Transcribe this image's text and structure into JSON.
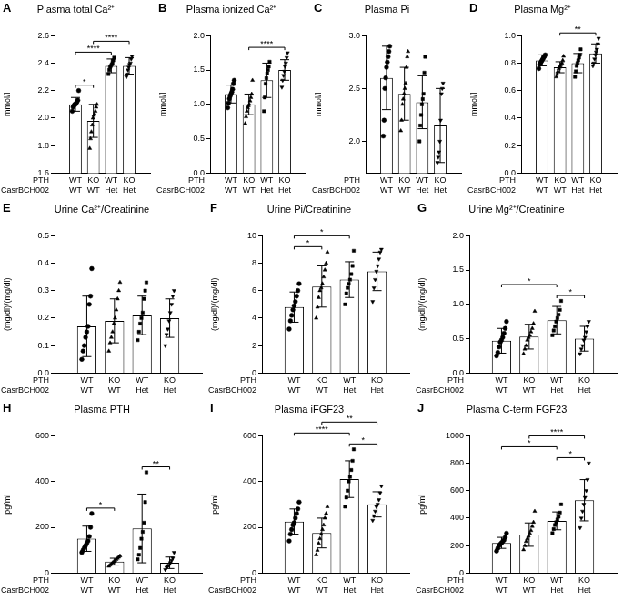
{
  "chart_data": [
    {
      "type": "bar",
      "panel_label": "A",
      "title": "Plasma total Ca²⁺",
      "y_label": "mmol/l",
      "categories": [
        [
          "WT",
          "WT"
        ],
        [
          "KO",
          "WT"
        ],
        [
          "WT",
          "Het"
        ],
        [
          "KO",
          "Het"
        ]
      ],
      "category_rows": [
        "PTH",
        "CasrBCH002"
      ],
      "values": [
        2.1,
        1.98,
        2.38,
        2.38
      ],
      "error": [
        0.05,
        0.12,
        0.05,
        0.06
      ],
      "points": [
        [
          2.05,
          2.08,
          2.09,
          2.1,
          2.1,
          2.11,
          2.12,
          2.13,
          2.2
        ],
        [
          1.78,
          1.85,
          1.9,
          1.95,
          2.0,
          2.02,
          2.03,
          2.05,
          2.08,
          2.1
        ],
        [
          2.32,
          2.35,
          2.37,
          2.38,
          2.39,
          2.4,
          2.42,
          2.44
        ],
        [
          2.3,
          2.32,
          2.35,
          2.37,
          2.39,
          2.4,
          2.43,
          2.45
        ]
      ],
      "color": "#ffffff",
      "ylim": [
        1.6,
        2.6
      ],
      "yticks": [
        1.6,
        1.8,
        {
          "value": 2,
          "label": "2.0"
        },
        2.2,
        2.4,
        2.6
      ],
      "grid": false,
      "significance": [
        {
          "from": 0,
          "to": 1,
          "label": "*"
        },
        {
          "from": 1,
          "to": 3,
          "label": "****"
        },
        {
          "from": 0,
          "to": 2,
          "label": "****"
        }
      ]
    },
    {
      "type": "bar",
      "panel_label": "B",
      "title": "Plasma ionized Ca²⁺",
      "y_label": "mmol/l",
      "categories": [
        [
          "WT",
          "WT"
        ],
        [
          "KO",
          "WT"
        ],
        [
          "WT",
          "Het"
        ],
        [
          "KO",
          "Het"
        ]
      ],
      "category_rows": [
        "PTH",
        "CasrBCH002"
      ],
      "values": [
        1.15,
        1.0,
        1.35,
        1.5
      ],
      "error": [
        0.13,
        0.15,
        0.25,
        0.15
      ],
      "points": [
        [
          0.95,
          1.02,
          1.08,
          1.12,
          1.15,
          1.18,
          1.22,
          1.3,
          1.35
        ],
        [
          0.72,
          0.82,
          0.9,
          0.95,
          0.98,
          1.0,
          1.05,
          1.1,
          1.15,
          1.35
        ],
        [
          0.9,
          1.1,
          1.3,
          1.38,
          1.45,
          1.5,
          1.55,
          1.62
        ],
        [
          1.25,
          1.35,
          1.42,
          1.48,
          1.55,
          1.6,
          1.68,
          1.75
        ]
      ],
      "color": "#ffffff",
      "ylim": [
        0,
        2
      ],
      "yticks": [
        {
          "value": 0,
          "label": "0.0"
        },
        0.5,
        {
          "value": 1,
          "label": "1.0"
        },
        1.5,
        {
          "value": 2,
          "label": "2.0"
        }
      ],
      "grid": false,
      "significance": [
        {
          "from": 1,
          "to": 3,
          "label": "****"
        }
      ]
    },
    {
      "type": "bar",
      "panel_label": "C",
      "title": "Plasma Pi",
      "y_label": "mmol/l",
      "categories": [
        [
          "WT",
          "WT"
        ],
        [
          "KO",
          "WT"
        ],
        [
          "WT",
          "Het"
        ],
        [
          "KO",
          "Het"
        ]
      ],
      "category_rows": [
        "PTH",
        "CasrBCH002"
      ],
      "values": [
        2.6,
        2.45,
        2.37,
        2.15
      ],
      "error": [
        0.3,
        0.25,
        0.25,
        0.35
      ],
      "points": [
        [
          2.05,
          2.2,
          2.5,
          2.6,
          2.7,
          2.75,
          2.8,
          2.85,
          2.9
        ],
        [
          2.1,
          2.2,
          2.35,
          2.4,
          2.45,
          2.5,
          2.55,
          2.7,
          2.8,
          2.85
        ],
        [
          2.0,
          2.15,
          2.25,
          2.35,
          2.4,
          2.45,
          2.65,
          2.8
        ],
        [
          1.8,
          1.85,
          1.9,
          2.0,
          2.2,
          2.45,
          2.5,
          2.55
        ]
      ],
      "color": "#ffffff",
      "ylim": [
        1.7,
        3
      ],
      "yticks": [
        {
          "value": 2,
          "label": "2.0"
        },
        2.5,
        {
          "value": 3,
          "label": "3.0"
        }
      ],
      "grid": false,
      "significance": []
    },
    {
      "type": "bar",
      "panel_label": "D",
      "title": "Plasma Mg²⁺",
      "y_label": "mmol/l",
      "categories": [
        [
          "WT",
          "WT"
        ],
        [
          "KO",
          "WT"
        ],
        [
          "WT",
          "Het"
        ],
        [
          "KO",
          "Het"
        ]
      ],
      "category_rows": [
        "PTH",
        "CasrBCH002"
      ],
      "values": [
        0.82,
        0.77,
        0.8,
        0.87
      ],
      "error": [
        0.04,
        0.04,
        0.07,
        0.07
      ],
      "points": [
        [
          0.76,
          0.79,
          0.8,
          0.81,
          0.82,
          0.83,
          0.84,
          0.85,
          0.86
        ],
        [
          0.7,
          0.72,
          0.74,
          0.76,
          0.77,
          0.78,
          0.79,
          0.8,
          0.82,
          0.85
        ],
        [
          0.7,
          0.74,
          0.78,
          0.8,
          0.82,
          0.84,
          0.86,
          0.9
        ],
        [
          0.78,
          0.8,
          0.83,
          0.86,
          0.88,
          0.9,
          0.94,
          0.98
        ]
      ],
      "color": "#ffffff",
      "ylim": [
        0,
        1
      ],
      "yticks": [
        {
          "value": 0,
          "label": "0.0"
        },
        0.2,
        0.4,
        0.6,
        0.8,
        {
          "value": 1,
          "label": "1.0"
        }
      ],
      "grid": false,
      "significance": [
        {
          "from": 1,
          "to": 3,
          "label": "**"
        }
      ]
    },
    {
      "type": "bar",
      "panel_label": "E",
      "title": "Urine Ca²⁺/Creatinine",
      "y_label": "(mg/dl)/(mg/dl)",
      "categories": [
        [
          "WT",
          "WT"
        ],
        [
          "KO",
          "WT"
        ],
        [
          "WT",
          "Het"
        ],
        [
          "KO",
          "Het"
        ]
      ],
      "category_rows": [
        "PTH",
        "CasrBCH002"
      ],
      "values": [
        0.17,
        0.19,
        0.21,
        0.2
      ],
      "error": [
        0.11,
        0.08,
        0.07,
        0.07
      ],
      "points": [
        [
          0.05,
          0.08,
          0.1,
          0.13,
          0.15,
          0.17,
          0.25,
          0.28,
          0.38
        ],
        [
          0.08,
          0.11,
          0.13,
          0.15,
          0.18,
          0.2,
          0.23,
          0.27,
          0.3,
          0.33
        ],
        [
          0.12,
          0.15,
          0.18,
          0.2,
          0.22,
          0.27,
          0.3,
          0.33
        ],
        [
          0.1,
          0.14,
          0.16,
          0.19,
          0.22,
          0.25,
          0.28,
          0.3
        ]
      ],
      "color": "#ffffff",
      "ylim": [
        0,
        0.5
      ],
      "yticks": [
        {
          "value": 0,
          "label": "0.0"
        },
        0.1,
        0.2,
        0.3,
        0.4,
        0.5
      ],
      "grid": false,
      "significance": []
    },
    {
      "type": "bar",
      "panel_label": "F",
      "title": "Urine Pi/Creatinine",
      "y_label": "(mg/dl)/(mg/dl)",
      "categories": [
        [
          "WT",
          "WT"
        ],
        [
          "KO",
          "WT"
        ],
        [
          "WT",
          "Het"
        ],
        [
          "KO",
          "Het"
        ]
      ],
      "category_rows": [
        "PTH",
        "CasrBCH002"
      ],
      "values": [
        4.8,
        6.3,
        6.8,
        7.4
      ],
      "error": [
        1.1,
        1.5,
        1.3,
        1.4
      ],
      "points": [
        [
          3.2,
          3.8,
          4.2,
          4.6,
          4.9,
          5.2,
          5.6,
          6.0,
          6.5
        ],
        [
          4.0,
          4.8,
          5.5,
          6.0,
          6.2,
          6.5,
          7.0,
          7.5,
          8.0,
          8.8
        ],
        [
          5.0,
          5.8,
          6.2,
          6.5,
          6.8,
          7.2,
          7.8,
          8.9
        ],
        [
          5.2,
          6.2,
          6.8,
          7.4,
          7.8,
          8.3,
          8.8,
          9.0
        ]
      ],
      "color": "#ffffff",
      "ylim": [
        0,
        10
      ],
      "yticks": [
        0,
        2,
        4,
        6,
        8,
        10
      ],
      "grid": false,
      "significance": [
        {
          "from": 0,
          "to": 1,
          "label": "*"
        },
        {
          "from": 0,
          "to": 2,
          "label": "*"
        }
      ]
    },
    {
      "type": "bar",
      "panel_label": "G",
      "title": "Urine Mg²⁺/Creatinine",
      "y_label": "(mg/dl)/(mg/dl)",
      "categories": [
        [
          "WT",
          "WT"
        ],
        [
          "KO",
          "WT"
        ],
        [
          "WT",
          "Het"
        ],
        [
          "KO",
          "Het"
        ]
      ],
      "category_rows": [
        "PTH",
        "CasrBCH002"
      ],
      "values": [
        0.47,
        0.53,
        0.77,
        0.5
      ],
      "error": [
        0.18,
        0.18,
        0.2,
        0.18
      ],
      "points": [
        [
          0.25,
          0.3,
          0.38,
          0.45,
          0.48,
          0.52,
          0.58,
          0.65,
          0.75
        ],
        [
          0.28,
          0.35,
          0.4,
          0.48,
          0.52,
          0.55,
          0.6,
          0.65,
          0.72,
          0.9
        ],
        [
          0.55,
          0.62,
          0.68,
          0.75,
          0.8,
          0.85,
          0.92,
          1.05
        ],
        [
          0.28,
          0.35,
          0.4,
          0.48,
          0.52,
          0.6,
          0.68,
          0.75
        ]
      ],
      "color": "#ffffff",
      "ylim": [
        0,
        2
      ],
      "yticks": [
        {
          "value": 0,
          "label": "0.0"
        },
        0.5,
        {
          "value": 1,
          "label": "1.0"
        },
        1.5,
        {
          "value": 2,
          "label": "2.0"
        }
      ],
      "grid": false,
      "significance": [
        {
          "from": 0,
          "to": 2,
          "label": "*"
        },
        {
          "from": 2,
          "to": 3,
          "label": "*"
        }
      ]
    },
    {
      "type": "bar",
      "panel_label": "H",
      "title": "Plasma PTH",
      "y_label": "pg/ml",
      "categories": [
        [
          "WT",
          "WT"
        ],
        [
          "KO",
          "WT"
        ],
        [
          "WT",
          "Het"
        ],
        [
          "KO",
          "Het"
        ]
      ],
      "category_rows": [
        "PTH",
        "CasrBCH002"
      ],
      "values": [
        150,
        50,
        195,
        45
      ],
      "error": [
        55,
        15,
        150,
        25
      ],
      "points": [
        [
          90,
          100,
          110,
          120,
          130,
          140,
          160,
          200,
          260
        ],
        [
          30,
          35,
          40,
          45,
          50,
          55,
          60,
          65,
          70,
          75
        ],
        [
          60,
          80,
          110,
          150,
          180,
          220,
          310,
          440
        ],
        [
          15,
          25,
          30,
          35,
          45,
          55,
          65,
          90
        ]
      ],
      "color": "#ffffff",
      "ylim": [
        0,
        600
      ],
      "yticks": [
        0,
        200,
        400,
        600
      ],
      "grid": false,
      "significance": [
        {
          "from": 0,
          "to": 1,
          "label": "*"
        },
        {
          "from": 2,
          "to": 3,
          "label": "**"
        }
      ]
    },
    {
      "type": "bar",
      "panel_label": "I",
      "title": "Plasma iFGF23",
      "y_label": "pg/ml",
      "categories": [
        [
          "WT",
          "WT"
        ],
        [
          "KO",
          "WT"
        ],
        [
          "WT",
          "Het"
        ],
        [
          "KO",
          "Het"
        ]
      ],
      "category_rows": [
        "PTH",
        "CasrBCH002"
      ],
      "values": [
        225,
        175,
        410,
        300
      ],
      "error": [
        55,
        65,
        80,
        55
      ],
      "points": [
        [
          140,
          170,
          190,
          210,
          220,
          240,
          260,
          280,
          310
        ],
        [
          80,
          100,
          130,
          150,
          170,
          190,
          210,
          240,
          260,
          290
        ],
        [
          290,
          330,
          360,
          400,
          420,
          450,
          490,
          540
        ],
        [
          230,
          250,
          270,
          290,
          300,
          320,
          350,
          380
        ]
      ],
      "color": "#ffffff",
      "ylim": [
        0,
        600
      ],
      "yticks": [
        0,
        200,
        400,
        600
      ],
      "grid": false,
      "significance": [
        {
          "from": 0,
          "to": 2,
          "label": "****"
        },
        {
          "from": 1,
          "to": 3,
          "label": "**"
        },
        {
          "from": 2,
          "to": 3,
          "label": "*"
        }
      ]
    },
    {
      "type": "bar",
      "panel_label": "J",
      "title": "Plasma C-term FGF23",
      "y_label": "pg/ml",
      "categories": [
        [
          "WT",
          "WT"
        ],
        [
          "KO",
          "WT"
        ],
        [
          "WT",
          "Het"
        ],
        [
          "KO",
          "Het"
        ]
      ],
      "category_rows": [
        "PTH",
        "CasrBCH002"
      ],
      "values": [
        220,
        280,
        380,
        530
      ],
      "error": [
        40,
        85,
        65,
        150
      ],
      "points": [
        [
          160,
          180,
          200,
          210,
          220,
          230,
          240,
          260,
          290
        ],
        [
          170,
          200,
          230,
          250,
          270,
          290,
          310,
          340,
          370,
          450
        ],
        [
          290,
          320,
          350,
          370,
          390,
          410,
          440,
          500
        ],
        [
          330,
          400,
          450,
          500,
          550,
          600,
          680,
          800
        ]
      ],
      "color": "#ffffff",
      "ylim": [
        0,
        1000
      ],
      "yticks": [
        0,
        200,
        400,
        600,
        800,
        1000
      ],
      "grid": false,
      "significance": [
        {
          "from": 0,
          "to": 2,
          "label": "*"
        },
        {
          "from": 1,
          "to": 3,
          "label": "****"
        },
        {
          "from": 2,
          "to": 3,
          "label": "*"
        }
      ]
    }
  ]
}
